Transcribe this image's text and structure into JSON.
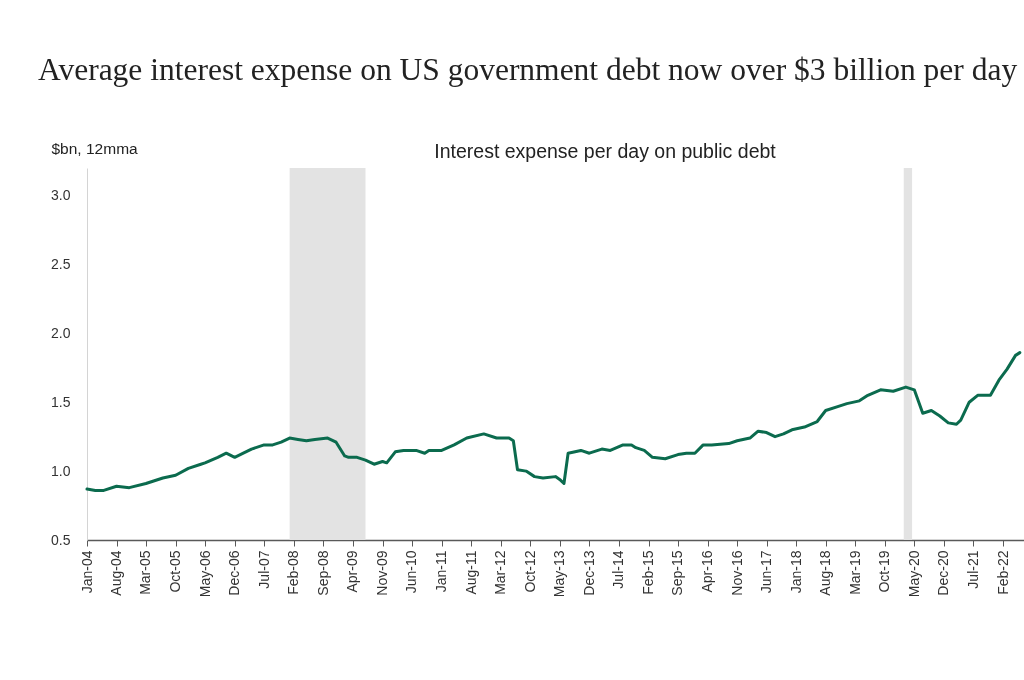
{
  "chart_data": {
    "type": "line",
    "title": "Average interest expense on US government debt now over $3 billion per day",
    "subtitle": "Interest expense per day on public debt",
    "ylabel": "$bn, 12mma",
    "xlim": [
      "2004-01",
      "2022-07"
    ],
    "xticks": [
      {
        "value": "2004-01",
        "label": "Jan-04"
      },
      {
        "value": "2004-08",
        "label": "Aug-04"
      },
      {
        "value": "2005-03",
        "label": "Mar-05"
      },
      {
        "value": "2005-10",
        "label": "Oct-05"
      },
      {
        "value": "2006-05",
        "label": "May-06"
      },
      {
        "value": "2006-12",
        "label": "Dec-06"
      },
      {
        "value": "2007-07",
        "label": "Jul-07"
      },
      {
        "value": "2008-02",
        "label": "Feb-08"
      },
      {
        "value": "2008-09",
        "label": "Sep-08"
      },
      {
        "value": "2009-04",
        "label": "Apr-09"
      },
      {
        "value": "2009-11",
        "label": "Nov-09"
      },
      {
        "value": "2010-06",
        "label": "Jun-10"
      },
      {
        "value": "2011-01",
        "label": "Jan-11"
      },
      {
        "value": "2011-08",
        "label": "Aug-11"
      },
      {
        "value": "2012-03",
        "label": "Mar-12"
      },
      {
        "value": "2012-10",
        "label": "Oct-12"
      },
      {
        "value": "2013-05",
        "label": "May-13"
      },
      {
        "value": "2013-12",
        "label": "Dec-13"
      },
      {
        "value": "2014-07",
        "label": "Jul-14"
      },
      {
        "value": "2015-02",
        "label": "Feb-15"
      },
      {
        "value": "2015-09",
        "label": "Sep-15"
      },
      {
        "value": "2016-04",
        "label": "Apr-16"
      },
      {
        "value": "2016-11",
        "label": "Nov-16"
      },
      {
        "value": "2017-06",
        "label": "Jun-17"
      },
      {
        "value": "2018-01",
        "label": "Jan-18"
      },
      {
        "value": "2018-08",
        "label": "Aug-18"
      },
      {
        "value": "2019-03",
        "label": "Mar-19"
      },
      {
        "value": "2019-10",
        "label": "Oct-19"
      },
      {
        "value": "2020-05",
        "label": "May-20"
      },
      {
        "value": "2020-12",
        "label": "Dec-20"
      },
      {
        "value": "2021-07",
        "label": "Jul-21"
      },
      {
        "value": "2022-02",
        "label": "Feb-22"
      }
    ],
    "ylim": [
      0.5,
      3.2
    ],
    "yticks": [
      {
        "value": 0.5,
        "label": "0.5"
      },
      {
        "value": 1,
        "label": "1.0"
      },
      {
        "value": 1.5,
        "label": "1.5"
      },
      {
        "value": 2,
        "label": "2.0"
      },
      {
        "value": 2.5,
        "label": "2.5"
      },
      {
        "value": 3,
        "label": "3.0"
      }
    ],
    "bands": [
      {
        "axis": "x",
        "from": "2008-01",
        "to": "2009-07",
        "color": "#e3e3e3"
      },
      {
        "axis": "x",
        "from": "2020-02-15",
        "to": "2020-04-15",
        "color": "#e3e3e3"
      }
    ],
    "series": [
      {
        "color": "#0b6b4e",
        "line_style": "solid",
        "x": [
          "2004-01",
          "2004-03",
          "2004-05",
          "2004-08",
          "2004-11",
          "2005-03",
          "2005-07",
          "2005-10",
          "2006-01",
          "2006-04",
          "2006-05",
          "2006-08",
          "2006-10",
          "2006-12",
          "2007-02",
          "2007-04",
          "2007-07",
          "2007-09",
          "2007-11",
          "2008-01",
          "2008-03",
          "2008-05",
          "2008-07",
          "2008-10",
          "2008-12",
          "2009-02",
          "2009-03",
          "2009-05",
          "2009-07",
          "2009-09",
          "2009-11",
          "2009-12",
          "2010-02",
          "2010-04",
          "2010-07",
          "2010-09",
          "2010-10",
          "2011-01",
          "2011-04",
          "2011-07",
          "2011-11",
          "2012-02",
          "2012-05",
          "2012-06",
          "2012-07",
          "2012-09",
          "2012-11",
          "2013-01",
          "2013-04",
          "2013-05",
          "2013-06",
          "2013-07",
          "2013-10",
          "2013-12",
          "2014-03",
          "2014-05",
          "2014-08",
          "2014-10",
          "2014-11",
          "2015-01",
          "2015-03",
          "2015-06",
          "2015-09",
          "2015-11",
          "2016-01",
          "2016-03",
          "2016-05",
          "2016-09",
          "2016-11",
          "2017-02",
          "2017-04",
          "2017-06",
          "2017-08",
          "2017-10",
          "2017-12",
          "2018-03",
          "2018-06",
          "2018-08",
          "2018-11",
          "2019-01",
          "2019-04",
          "2019-06",
          "2019-09",
          "2019-12",
          "2020-03",
          "2020-05",
          "2020-07",
          "2020-09",
          "2020-11",
          "2021-01",
          "2021-03",
          "2021-04",
          "2021-06",
          "2021-08",
          "2021-11",
          "2022-01",
          "2022-03",
          "2022-05",
          "2022-06"
        ],
        "values": [
          0.87,
          0.86,
          0.86,
          0.89,
          0.88,
          0.91,
          0.95,
          0.97,
          1.02,
          1.05,
          1.06,
          1.1,
          1.13,
          1.1,
          1.13,
          1.16,
          1.19,
          1.19,
          1.21,
          1.24,
          1.23,
          1.22,
          1.23,
          1.24,
          1.21,
          1.11,
          1.1,
          1.1,
          1.08,
          1.05,
          1.07,
          1.06,
          1.14,
          1.15,
          1.15,
          1.13,
          1.15,
          1.15,
          1.19,
          1.24,
          1.27,
          1.24,
          1.24,
          1.22,
          1.01,
          1.0,
          0.96,
          0.95,
          0.96,
          0.94,
          0.91,
          1.13,
          1.15,
          1.13,
          1.16,
          1.15,
          1.19,
          1.19,
          1.17,
          1.15,
          1.1,
          1.09,
          1.12,
          1.13,
          1.13,
          1.19,
          1.19,
          1.2,
          1.22,
          1.24,
          1.29,
          1.28,
          1.25,
          1.27,
          1.3,
          1.32,
          1.36,
          1.44,
          1.47,
          1.49,
          1.51,
          1.55,
          1.59,
          1.58,
          1.61,
          1.59,
          1.42,
          1.44,
          1.4,
          1.35,
          1.34,
          1.37,
          1.5,
          1.55,
          1.55,
          1.66,
          1.74,
          1.84,
          1.86
        ]
      }
    ]
  }
}
